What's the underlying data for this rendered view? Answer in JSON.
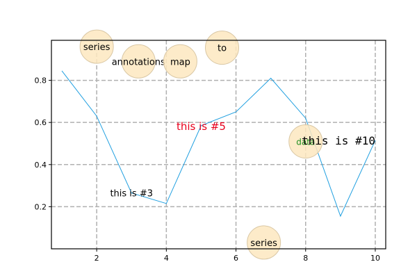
{
  "chart_data": {
    "type": "line",
    "title": "",
    "xlabel": "",
    "ylabel": "",
    "xlim": [
      0.7,
      10.3
    ],
    "ylim": [
      0.0,
      0.99
    ],
    "grid": true,
    "legend": "none",
    "line_color": "#1f9fe0",
    "series": [
      {
        "x": [
          1,
          2,
          3,
          4,
          5,
          6,
          7,
          8,
          9,
          10
        ],
        "y": [
          0.845,
          0.63,
          0.265,
          0.215,
          0.585,
          0.65,
          0.81,
          0.62,
          0.155,
          0.515
        ]
      }
    ],
    "xticks": [
      {
        "value": 2,
        "label": "2"
      },
      {
        "value": 4,
        "label": "4"
      },
      {
        "value": 6,
        "label": "6"
      },
      {
        "value": 8,
        "label": "8"
      },
      {
        "value": 10,
        "label": "10"
      }
    ],
    "yticks": [
      {
        "value": 0.2,
        "label": "0.2"
      },
      {
        "value": 0.4,
        "label": "0.4"
      },
      {
        "value": 0.6,
        "label": "0.6"
      },
      {
        "value": 0.8,
        "label": "0.8"
      }
    ],
    "bubble_color": "#fde8c0",
    "bubbles": [
      {
        "x": 2.0,
        "y": 0.96,
        "label": "series"
      },
      {
        "x": 3.2,
        "y": 0.89,
        "label": "annotations"
      },
      {
        "x": 4.4,
        "y": 0.89,
        "label": "map"
      },
      {
        "x": 5.6,
        "y": 0.955,
        "label": "to"
      },
      {
        "x": 6.8,
        "y": 0.03,
        "label": "series"
      },
      {
        "x": 8.0,
        "y": 0.51,
        "label": "data"
      }
    ],
    "annotations": [
      {
        "x": 3.0,
        "y": 0.265,
        "text": "this is #3",
        "color": "#000000",
        "font": "sans"
      },
      {
        "x": 5.0,
        "y": 0.58,
        "text": "this is #5",
        "color": "#e8001c",
        "font": "sans"
      },
      {
        "x": 10.0,
        "y": 0.515,
        "text": "this is #10",
        "color": "#000000",
        "font": "mono"
      }
    ]
  }
}
